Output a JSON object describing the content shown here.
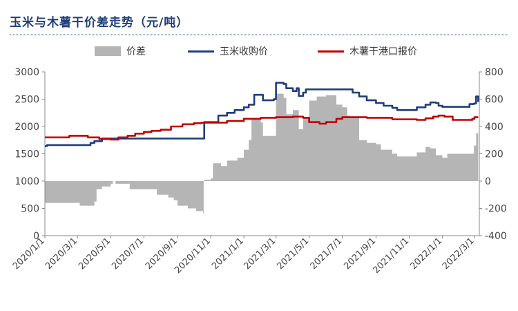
{
  "title": "玉米与木薯干价差走势（元/吨）",
  "legend": [
    {
      "label": "价差",
      "kind": "area",
      "color": "#b5b5b5"
    },
    {
      "label": "玉米收购价",
      "kind": "line",
      "color": "#1f3d7a"
    },
    {
      "label": "木薯干港口报价",
      "kind": "line",
      "color": "#c00000"
    }
  ],
  "chart_data": {
    "type": "line",
    "title": "玉米与木薯干价差走势（元/吨）",
    "x_labels": [
      "2020/1/1",
      "2020/3/1",
      "2020/5/1",
      "2020/7/1",
      "2020/9/1",
      "2020/11/1",
      "2021/1/1",
      "2021/3/1",
      "2021/5/1",
      "2021/7/1",
      "2021/9/1",
      "2021/11/1",
      "2022/1/1",
      "2022/3/1"
    ],
    "x_range": [
      "2020-01-01",
      "2022-03-10"
    ],
    "y_left": {
      "min": 0,
      "max": 3000,
      "ticks": [
        0,
        500,
        1000,
        1500,
        2000,
        2500,
        3000
      ]
    },
    "y_right": {
      "min": -400,
      "max": 800,
      "ticks": [
        -400,
        -200,
        0,
        200,
        400,
        600,
        800
      ]
    },
    "series": [
      {
        "name": "玉米收购价",
        "axis": "left",
        "color": "#1f3d7a",
        "points": [
          [
            "2020-01-01",
            1640
          ],
          [
            "2020-01-05",
            1660
          ],
          [
            "2020-03-25",
            1700
          ],
          [
            "2020-04-01",
            1730
          ],
          [
            "2020-04-15",
            1780
          ],
          [
            "2020-05-01",
            1780
          ],
          [
            "2020-10-18",
            1780
          ],
          [
            "2020-10-20",
            2080
          ],
          [
            "2020-11-10",
            2080
          ],
          [
            "2020-11-15",
            2200
          ],
          [
            "2020-12-01",
            2250
          ],
          [
            "2020-12-15",
            2300
          ],
          [
            "2021-01-01",
            2350
          ],
          [
            "2021-01-10",
            2400
          ],
          [
            "2021-01-20",
            2580
          ],
          [
            "2021-02-01",
            2580
          ],
          [
            "2021-02-05",
            2480
          ],
          [
            "2021-02-25",
            2500
          ],
          [
            "2021-03-01",
            2800
          ],
          [
            "2021-03-15",
            2780
          ],
          [
            "2021-03-20",
            2700
          ],
          [
            "2021-04-01",
            2650
          ],
          [
            "2021-04-08",
            2700
          ],
          [
            "2021-04-12",
            2560
          ],
          [
            "2021-04-20",
            2620
          ],
          [
            "2021-04-25",
            2680
          ],
          [
            "2021-07-15",
            2680
          ],
          [
            "2021-07-20",
            2620
          ],
          [
            "2021-08-01",
            2550
          ],
          [
            "2021-08-15",
            2480
          ],
          [
            "2021-09-01",
            2430
          ],
          [
            "2021-09-15",
            2380
          ],
          [
            "2021-10-01",
            2340
          ],
          [
            "2021-10-10",
            2300
          ],
          [
            "2021-11-01",
            2300
          ],
          [
            "2021-11-15",
            2350
          ],
          [
            "2021-12-01",
            2400
          ],
          [
            "2021-12-10",
            2440
          ],
          [
            "2021-12-20",
            2430
          ],
          [
            "2021-12-25",
            2380
          ],
          [
            "2022-01-01",
            2360
          ],
          [
            "2022-02-10",
            2360
          ],
          [
            "2022-02-20",
            2410
          ],
          [
            "2022-02-28",
            2420
          ],
          [
            "2022-03-04",
            2550
          ],
          [
            "2022-03-08",
            2450
          ]
        ]
      },
      {
        "name": "木薯干港口报价",
        "axis": "left",
        "color": "#c00000",
        "points": [
          [
            "2020-01-01",
            1800
          ],
          [
            "2020-02-10",
            1800
          ],
          [
            "2020-02-15",
            1830
          ],
          [
            "2020-03-10",
            1830
          ],
          [
            "2020-03-20",
            1800
          ],
          [
            "2020-04-10",
            1770
          ],
          [
            "2020-05-01",
            1760
          ],
          [
            "2020-05-15",
            1800
          ],
          [
            "2020-06-01",
            1830
          ],
          [
            "2020-06-15",
            1870
          ],
          [
            "2020-07-01",
            1900
          ],
          [
            "2020-07-15",
            1920
          ],
          [
            "2020-08-01",
            1940
          ],
          [
            "2020-08-20",
            2000
          ],
          [
            "2020-09-10",
            2040
          ],
          [
            "2020-10-01",
            2060
          ],
          [
            "2020-10-15",
            2070
          ],
          [
            "2020-11-10",
            2070
          ],
          [
            "2020-12-01",
            2100
          ],
          [
            "2021-01-01",
            2140
          ],
          [
            "2021-02-01",
            2160
          ],
          [
            "2021-03-01",
            2170
          ],
          [
            "2021-04-01",
            2180
          ],
          [
            "2021-04-20",
            2160
          ],
          [
            "2021-05-01",
            2080
          ],
          [
            "2021-05-20",
            2050
          ],
          [
            "2021-06-01",
            2080
          ],
          [
            "2021-06-20",
            2140
          ],
          [
            "2021-07-01",
            2170
          ],
          [
            "2021-08-15",
            2160
          ],
          [
            "2021-10-01",
            2130
          ],
          [
            "2021-11-15",
            2120
          ],
          [
            "2021-12-01",
            2150
          ],
          [
            "2021-12-15",
            2180
          ],
          [
            "2021-12-25",
            2200
          ],
          [
            "2022-01-05",
            2180
          ],
          [
            "2022-01-20",
            2120
          ],
          [
            "2022-02-10",
            2120
          ],
          [
            "2022-02-25",
            2140
          ],
          [
            "2022-03-01",
            2170
          ],
          [
            "2022-03-08",
            2170
          ]
        ]
      },
      {
        "name": "价差",
        "axis": "right",
        "color": "#b5b5b5",
        "kind": "area",
        "points": [
          [
            "2020-01-01",
            -160
          ],
          [
            "2020-03-01",
            -160
          ],
          [
            "2020-03-05",
            -180
          ],
          [
            "2020-04-01",
            -150
          ],
          [
            "2020-04-05",
            -60
          ],
          [
            "2020-04-15",
            -40
          ],
          [
            "2020-05-01",
            -20
          ],
          [
            "2020-05-05",
            0
          ],
          [
            "2020-05-10",
            -20
          ],
          [
            "2020-05-25",
            -20
          ],
          [
            "2020-06-05",
            -60
          ],
          [
            "2020-07-20",
            -60
          ],
          [
            "2020-07-25",
            -100
          ],
          [
            "2020-08-15",
            -120
          ],
          [
            "2020-08-25",
            -140
          ],
          [
            "2020-09-01",
            -180
          ],
          [
            "2020-09-20",
            -200
          ],
          [
            "2020-10-05",
            -220
          ],
          [
            "2020-10-18",
            -240
          ],
          [
            "2020-10-19",
            0
          ],
          [
            "2020-10-20",
            10
          ],
          [
            "2020-11-01",
            20
          ],
          [
            "2020-11-05",
            130
          ],
          [
            "2020-11-20",
            110
          ],
          [
            "2020-12-01",
            150
          ],
          [
            "2020-12-20",
            170
          ],
          [
            "2021-01-01",
            230
          ],
          [
            "2021-01-10",
            300
          ],
          [
            "2021-01-15",
            450
          ],
          [
            "2021-02-01",
            430
          ],
          [
            "2021-02-05",
            330
          ],
          [
            "2021-02-25",
            330
          ],
          [
            "2021-03-01",
            640
          ],
          [
            "2021-03-15",
            610
          ],
          [
            "2021-03-20",
            490
          ],
          [
            "2021-04-01",
            520
          ],
          [
            "2021-04-12",
            380
          ],
          [
            "2021-04-20",
            470
          ],
          [
            "2021-05-01",
            590
          ],
          [
            "2021-05-15",
            620
          ],
          [
            "2021-06-01",
            630
          ],
          [
            "2021-06-20",
            560
          ],
          [
            "2021-07-01",
            540
          ],
          [
            "2021-07-10",
            480
          ],
          [
            "2021-07-15",
            470
          ],
          [
            "2021-08-01",
            300
          ],
          [
            "2021-08-15",
            280
          ],
          [
            "2021-09-01",
            270
          ],
          [
            "2021-09-10",
            230
          ],
          [
            "2021-10-01",
            200
          ],
          [
            "2021-10-10",
            180
          ],
          [
            "2021-11-01",
            180
          ],
          [
            "2021-11-15",
            210
          ],
          [
            "2021-12-01",
            250
          ],
          [
            "2021-12-10",
            240
          ],
          [
            "2021-12-20",
            190
          ],
          [
            "2022-01-01",
            170
          ],
          [
            "2022-01-10",
            200
          ],
          [
            "2022-02-20",
            200
          ],
          [
            "2022-02-28",
            260
          ],
          [
            "2022-03-04",
            350
          ],
          [
            "2022-03-08",
            280
          ]
        ]
      }
    ],
    "grid": false,
    "legend_position": "top"
  }
}
